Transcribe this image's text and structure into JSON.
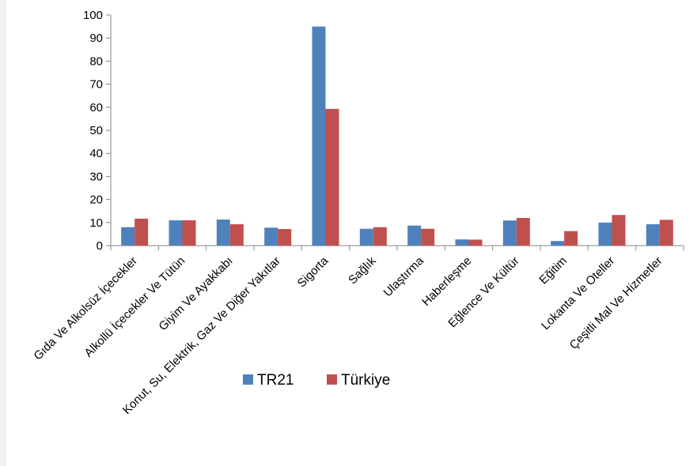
{
  "chart_data": {
    "type": "bar",
    "title": "",
    "xlabel": "",
    "ylabel": "",
    "ylim": [
      0,
      100
    ],
    "yticks": [
      0,
      10,
      20,
      30,
      40,
      50,
      60,
      70,
      80,
      90,
      100
    ],
    "grid": false,
    "legend_position": "bottom-center",
    "categories": [
      "Gıda Ve Alkolsüz İçecekler",
      "Alkollü İçecekler Ve Tütün",
      "Giyim Ve Ayakkabı",
      "Konut, Su, Elektrik, Gaz Ve Diğer Yakıtlar",
      "Sigorta",
      "Sağlık",
      "Ulaştırma",
      "Haberleşme",
      "Eğlence Ve Kültür",
      "Eğitim",
      "Lokanta Ve Oteller",
      "Çeşitli Mal Ve Hizmetler"
    ],
    "series": [
      {
        "name": "TR21",
        "color": "#4f81bd",
        "values": [
          8.0,
          11.0,
          11.3,
          7.8,
          95.0,
          7.3,
          8.7,
          2.7,
          10.9,
          2.0,
          10.0,
          9.3
        ]
      },
      {
        "name": "Türkiye",
        "color": "#c0504d",
        "values": [
          11.7,
          11.0,
          9.3,
          7.2,
          59.3,
          8.0,
          7.3,
          2.6,
          12.0,
          6.3,
          13.3,
          11.2
        ]
      }
    ]
  }
}
